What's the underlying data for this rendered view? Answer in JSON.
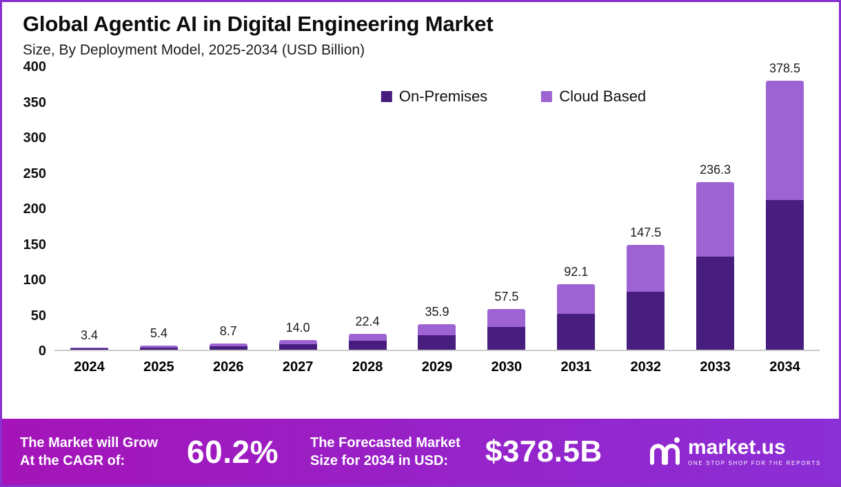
{
  "header": {
    "title": "Global Agentic AI in Digital Engineering Market",
    "subtitle": "Size, By Deployment Model, 2025-2034 (USD Billion)"
  },
  "chart_data": {
    "type": "bar",
    "stacked": true,
    "title": "Global Agentic AI in Digital Engineering Market Size, By Deployment Model, 2025-2034 (USD Billion)",
    "categories": [
      "2024",
      "2025",
      "2026",
      "2027",
      "2028",
      "2029",
      "2030",
      "2031",
      "2032",
      "2033",
      "2034"
    ],
    "series": [
      {
        "name": "On-Premises",
        "color": "#471d7d",
        "values": [
          1.9,
          3.0,
          4.9,
          7.8,
          12.5,
          20.0,
          32.0,
          50.5,
          81.5,
          131.5,
          211.0
        ]
      },
      {
        "name": "Cloud Based",
        "color": "#9d63d3",
        "values": [
          1.5,
          2.4,
          3.8,
          6.2,
          9.9,
          15.9,
          25.5,
          41.6,
          66.0,
          104.8,
          167.5
        ]
      }
    ],
    "totals": [
      3.4,
      5.4,
      8.7,
      14.0,
      22.4,
      35.9,
      57.5,
      92.1,
      147.5,
      236.3,
      378.5
    ],
    "total_labels": [
      "3.4",
      "5.4",
      "8.7",
      "14.0",
      "22.4",
      "35.9",
      "57.5",
      "92.1",
      "147.5",
      "236.3",
      "378.5"
    ],
    "xlabel": "",
    "ylabel": "",
    "ylim": [
      0,
      400
    ],
    "yticks": [
      0,
      50,
      100,
      150,
      200,
      250,
      300,
      350,
      400
    ],
    "grid": false,
    "legend_position": "top-center"
  },
  "footer": {
    "cagr_label_line1": "The Market will Grow",
    "cagr_label_line2": "At the CAGR of:",
    "cagr_value": "60.2%",
    "forecast_label_line1": "The Forecasted Market",
    "forecast_label_line2": "Size for 2034 in USD:",
    "forecast_value": "$378.5B",
    "brand_name": "market.us",
    "brand_tagline": "ONE STOP SHOP FOR THE REPORTS"
  },
  "colors": {
    "on_premises": "#471d7d",
    "cloud_based": "#9d63d3",
    "frame_border": "#8631cf",
    "banner_gradient_start": "#a414b8",
    "banner_gradient_end": "#8b2fd6",
    "axis_line": "#c9c9c9"
  }
}
